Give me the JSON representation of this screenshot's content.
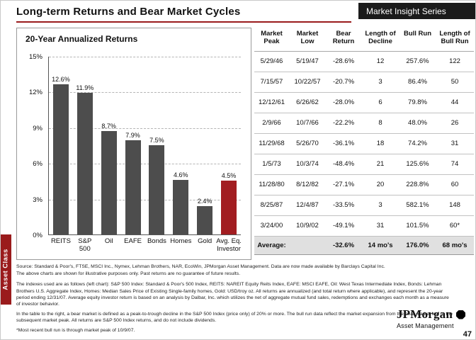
{
  "header": {
    "title": "Long-term Returns and Bear Market Cycles",
    "badge": "Market Insight Series"
  },
  "sidebar_label": "Asset Class",
  "colors": {
    "accent_red": "#9a1b1c",
    "badge_bg": "#1b1b1b",
    "bar_gray": "#4d4d4d",
    "bar_highlight": "#a21d21"
  },
  "chart_data": [
    {
      "type": "bar",
      "title": "20-Year Annualized Returns",
      "categories": [
        "REITS",
        "S&P\n500",
        "Oil",
        "EAFE",
        "Bonds",
        "Homes",
        "Gold",
        "Avg. Eq.\nInvestor"
      ],
      "values": [
        12.6,
        11.9,
        8.7,
        7.9,
        7.5,
        4.6,
        2.4,
        4.5
      ],
      "labels": [
        "12.6%",
        "11.9%",
        "8.7%",
        "7.9%",
        "7.5%",
        "4.6%",
        "2.4%",
        "4.5%"
      ],
      "highlight_index": 7,
      "xlabel": "",
      "ylabel": "",
      "ylim": [
        0,
        15
      ],
      "yticks": [
        "0%",
        "3%",
        "6%",
        "9%",
        "12%",
        "15%"
      ],
      "grid": true,
      "legend_position": "none"
    },
    {
      "type": "table",
      "columns": [
        "Market\nPeak",
        "Market\nLow",
        "Bear\nReturn",
        "Length of\nDecline",
        "Bull   Run",
        "Length of\nBull Run"
      ],
      "rows": [
        [
          "5/29/46",
          "5/19/47",
          "-28.6%",
          "12",
          "257.6%",
          "122"
        ],
        [
          "7/15/57",
          "10/22/57",
          "-20.7%",
          "3",
          "86.4%",
          "50"
        ],
        [
          "12/12/61",
          "6/26/62",
          "-28.0%",
          "6",
          "79.8%",
          "44"
        ],
        [
          "2/9/66",
          "10/7/66",
          "-22.2%",
          "8",
          "48.0%",
          "26"
        ],
        [
          "11/29/68",
          "5/26/70",
          "-36.1%",
          "18",
          "74.2%",
          "31"
        ],
        [
          "1/5/73",
          "10/3/74",
          "-48.4%",
          "21",
          "125.6%",
          "74"
        ],
        [
          "11/28/80",
          "8/12/82",
          "-27.1%",
          "20",
          "228.8%",
          "60"
        ],
        [
          "8/25/87",
          "12/4/87",
          "-33.5%",
          "3",
          "582.1%",
          "148"
        ],
        [
          "3/24/00",
          "10/9/02",
          "-49.1%",
          "31",
          "101.5%",
          "60*"
        ]
      ],
      "average_row": [
        "Average:",
        "",
        "-32.6%",
        "14 mo's",
        "176.0%",
        "68 mo's"
      ]
    }
  ],
  "footnotes": [
    "Source: Standard & Poor's, FTSE, MSCI Inc., Nymex, Lehman Brothers, NAR, EcoWin, JPMorgan Asset Management. Data are now made available by Barclays Capital Inc.",
    "The above charts are shown for illustrative purposes only.  Past returns are no guarantee of future results.",
    "The indexes used are as follows (left chart): S&P 500 Index: Standard & Poor's 500 Index, REITS: NAREIT Equity Reits Index, EAFE: MSCI EAFE, Oil: West Texas Intermediate Index, Bonds: Lehman Brothers U.S. Aggregate Index, Homes: Median Sales Price of Existing Single-family homes, Gold: USD/troy oz. All returns are annualized (and total return where applicable), and represent the 20-year period ending 12/31/07.  Average equity investor return is based on an analysis by Dalbar, Inc. which utilizes the net of aggregate mutual fund sales, redemptions and exchanges each month as a measure of investor behavior.",
    "In the table to the right, a bear market is defined as a peak-to-trough decline in the S&P 500 Index (price only) of 20% or more. The bull run data reflect the market expansion from the bear market low to the subsequent market peak.  All returns are S&P 500 Index returns, and do not include dividends.",
    "*Most recent bull run is through market peak of 10/9/07."
  ],
  "logo": {
    "brand": "JPMorgan",
    "sub": "Asset Management"
  },
  "page_number": "47"
}
